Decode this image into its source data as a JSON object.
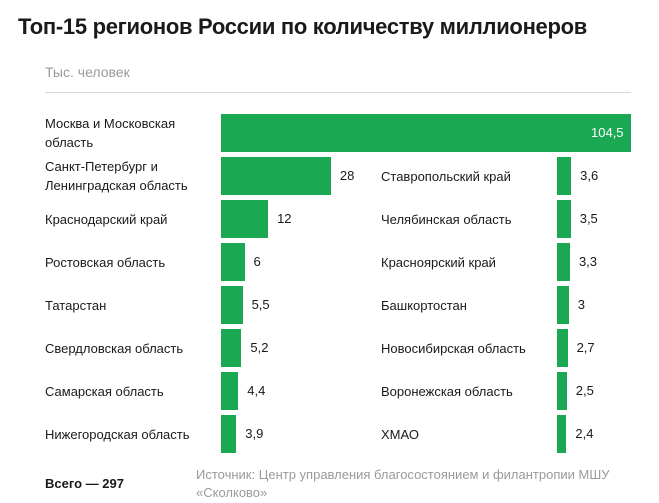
{
  "title": "Топ-15 регионов России по количеству миллионеров",
  "unit_label": "Тыс. человек",
  "total": "Всего — 297",
  "source": "Источник: Центр управления благосостоянием и филантропии МШУ «Сколково»",
  "colors": {
    "bar": "#1aa852",
    "text": "#1a1a1a",
    "muted": "#9a9a9a"
  },
  "chart_data": {
    "type": "bar",
    "orientation": "horizontal",
    "title": "Топ-15 регионов России по количеству миллионеров",
    "unit": "Тыс. человек",
    "columns": [
      {
        "categories": [
          "Москва и Московская область",
          "Санкт-Петербург и Ленинградская область",
          "Краснодарский край",
          "Ростовская область",
          "Татарстан",
          "Свердловская область",
          "Самарская область",
          "Нижегородская область"
        ],
        "values": [
          104.5,
          28,
          12,
          6,
          5.5,
          5.2,
          4.4,
          3.9
        ],
        "labels": [
          "104,5",
          "28",
          "12",
          "6",
          "5,5",
          "5,2",
          "4,4",
          "3,9"
        ]
      },
      {
        "categories": [
          "Ставропольский край",
          "Челябинская область",
          "Красноярский край",
          "Башкортостан",
          "Новосибирская область",
          "Воронежская область",
          "ХМАО"
        ],
        "values": [
          3.6,
          3.5,
          3.3,
          3,
          2.7,
          2.5,
          2.4
        ],
        "labels": [
          "3,6",
          "3,5",
          "3,3",
          "3",
          "2,7",
          "2,5",
          "2,4"
        ]
      }
    ]
  }
}
